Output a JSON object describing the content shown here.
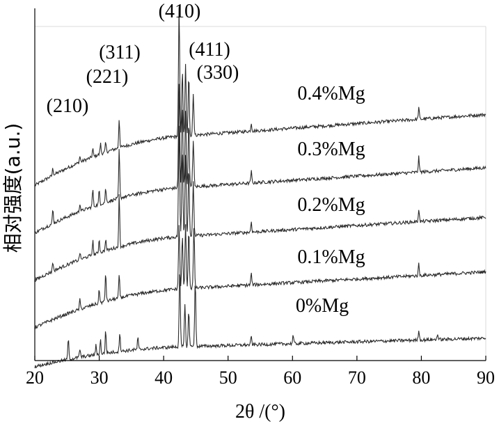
{
  "chart_data": {
    "type": "line",
    "title": "",
    "xlabel": "2θ /(°)",
    "ylabel": "相对强度(a.u.)",
    "xlim": [
      20,
      90
    ],
    "x_ticks": [
      20,
      30,
      40,
      50,
      60,
      70,
      80,
      90
    ],
    "grid": true,
    "peak_labels": [
      {
        "text": "(210)",
        "x": 22.8
      },
      {
        "text": "(221)",
        "x": 29.0
      },
      {
        "text": "(311)",
        "x": 33.1
      },
      {
        "text": "(410)",
        "x": 42.4
      },
      {
        "text": "(411)",
        "x": 43.4
      },
      {
        "text": "(330)",
        "x": 44.6
      }
    ],
    "series": [
      {
        "name": "0.4%Mg",
        "baseline_start": 1.35,
        "baseline_end": 1.95,
        "peaks": [
          [
            22.8,
            0.06
          ],
          [
            27.0,
            0.05
          ],
          [
            29.0,
            0.07
          ],
          [
            30.2,
            0.09
          ],
          [
            31.0,
            0.08
          ],
          [
            33.1,
            0.25
          ],
          [
            42.4,
            1.1
          ],
          [
            42.9,
            0.55
          ],
          [
            43.4,
            0.6
          ],
          [
            43.9,
            0.5
          ],
          [
            44.6,
            0.35
          ],
          [
            53.6,
            0.07
          ],
          [
            79.6,
            0.1
          ]
        ]
      },
      {
        "name": "0.3%Mg",
        "baseline_start": 0.95,
        "baseline_end": 1.5,
        "peaks": [
          [
            22.8,
            0.12
          ],
          [
            27.0,
            0.07
          ],
          [
            29.0,
            0.15
          ],
          [
            30.0,
            0.12
          ],
          [
            31.0,
            0.12
          ],
          [
            33.1,
            0.42
          ],
          [
            42.4,
            0.9
          ],
          [
            42.9,
            0.7
          ],
          [
            43.4,
            0.65
          ],
          [
            43.9,
            0.55
          ],
          [
            44.6,
            0.4
          ],
          [
            53.6,
            0.1
          ],
          [
            79.6,
            0.13
          ]
        ]
      },
      {
        "name": "0.2%Mg",
        "baseline_start": 0.55,
        "baseline_end": 1.08,
        "peaks": [
          [
            22.8,
            0.08
          ],
          [
            27.0,
            0.06
          ],
          [
            29.0,
            0.12
          ],
          [
            30.0,
            0.12
          ],
          [
            31.0,
            0.1
          ],
          [
            33.1,
            0.45
          ],
          [
            42.4,
            0.95
          ],
          [
            42.9,
            0.75
          ],
          [
            43.4,
            0.7
          ],
          [
            43.9,
            0.6
          ],
          [
            44.6,
            0.45
          ],
          [
            53.6,
            0.09
          ],
          [
            79.6,
            0.11
          ]
        ]
      },
      {
        "name": "0.1%Mg",
        "baseline_start": 0.15,
        "baseline_end": 0.62,
        "peaks": [
          [
            27.0,
            0.08
          ],
          [
            30.0,
            0.12
          ],
          [
            31.0,
            0.25
          ],
          [
            33.1,
            0.2
          ],
          [
            42.4,
            0.55
          ],
          [
            42.9,
            0.45
          ],
          [
            43.4,
            0.55
          ],
          [
            43.9,
            0.5
          ],
          [
            44.7,
            0.5
          ],
          [
            53.6,
            0.1
          ],
          [
            79.6,
            0.1
          ]
        ]
      },
      {
        "name": "0%Mg",
        "baseline_start": -0.18,
        "baseline_end": 0.06,
        "peaks": [
          [
            25.2,
            0.18
          ],
          [
            27.0,
            0.07
          ],
          [
            29.5,
            0.08
          ],
          [
            30.2,
            0.12
          ],
          [
            31.0,
            0.2
          ],
          [
            33.2,
            0.17
          ],
          [
            36.0,
            0.1
          ],
          [
            42.5,
            0.65
          ],
          [
            43.3,
            0.35
          ],
          [
            43.9,
            0.3
          ],
          [
            44.9,
            0.55
          ],
          [
            53.6,
            0.07
          ],
          [
            60.1,
            0.07
          ],
          [
            79.6,
            0.09
          ],
          [
            82.5,
            0.05
          ]
        ]
      }
    ]
  }
}
